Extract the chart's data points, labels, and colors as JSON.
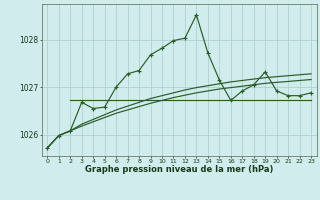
{
  "background_color": "#d0ecec",
  "grid_color": "#a8cccc",
  "line_color": "#2a5c2a",
  "title": "Graphe pression niveau de la mer (hPa)",
  "xlim": [
    -0.5,
    23.5
  ],
  "ylim": [
    1025.55,
    1028.75
  ],
  "yticks": [
    1026,
    1027,
    1028
  ],
  "xticks": [
    0,
    1,
    2,
    3,
    4,
    5,
    6,
    7,
    8,
    9,
    10,
    11,
    12,
    13,
    14,
    15,
    16,
    17,
    18,
    19,
    20,
    21,
    22,
    23
  ],
  "series_main": [
    1025.72,
    1025.98,
    1026.08,
    1026.68,
    1026.55,
    1026.58,
    1027.0,
    1027.28,
    1027.35,
    1027.68,
    1027.82,
    1027.98,
    1028.03,
    1028.52,
    1027.72,
    1027.15,
    1026.72,
    1026.92,
    1027.05,
    1027.32,
    1026.92,
    1026.82,
    1026.82,
    1026.88
  ],
  "series_flat": {
    "x0": 2,
    "x1": 23,
    "y": 1026.72
  },
  "series_slow1_x": [
    0,
    1,
    2,
    3,
    4,
    5,
    6,
    7,
    8,
    9,
    10,
    11,
    12,
    13,
    14,
    15,
    16,
    17,
    18,
    19,
    20,
    21,
    22,
    23
  ],
  "series_slow1_y": [
    1025.72,
    1025.98,
    1026.08,
    1026.22,
    1026.32,
    1026.42,
    1026.52,
    1026.6,
    1026.68,
    1026.76,
    1026.82,
    1026.88,
    1026.94,
    1026.99,
    1027.03,
    1027.07,
    1027.11,
    1027.14,
    1027.17,
    1027.2,
    1027.22,
    1027.24,
    1027.26,
    1027.28
  ],
  "series_slow2_y": [
    1025.72,
    1025.98,
    1026.08,
    1026.18,
    1026.27,
    1026.36,
    1026.45,
    1026.52,
    1026.59,
    1026.66,
    1026.72,
    1026.78,
    1026.83,
    1026.88,
    1026.92,
    1026.96,
    1026.99,
    1027.02,
    1027.05,
    1027.08,
    1027.1,
    1027.12,
    1027.14,
    1027.16
  ]
}
